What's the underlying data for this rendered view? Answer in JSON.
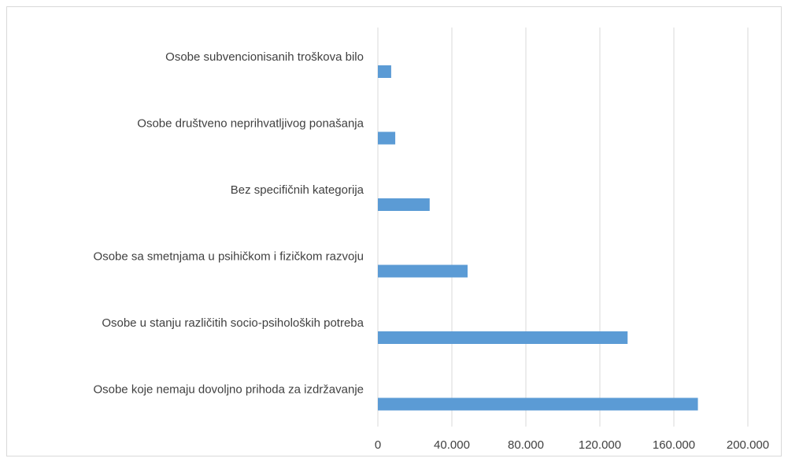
{
  "chart_data": {
    "type": "bar",
    "orientation": "horizontal",
    "categories": [
      "Osobe subvencionisanih troškova bilo",
      "Osobe društveno neprihvatljivog ponašanja",
      "Bez specifičnih kategorija",
      "Osobe sa smetnjama u psihičkom i fizičkom razvoju",
      "Osobe u stanju različitih socio-psiholoških potreba",
      "Osobe koje nemaju dovoljno prihoda za izdržavanje"
    ],
    "values": [
      7200,
      9400,
      28000,
      48500,
      135000,
      173000
    ],
    "color": "#5b9bd5",
    "xlim": [
      0,
      200000
    ],
    "xticks": [
      0,
      {
        "value": 40000,
        "label": "40.000"
      },
      {
        "value": 80000,
        "label": "80.000"
      },
      {
        "value": 120000,
        "label": "120.000"
      },
      {
        "value": 160000,
        "label": "160.000"
      },
      {
        "value": 200000,
        "label": "200.000"
      }
    ],
    "grid": true
  }
}
